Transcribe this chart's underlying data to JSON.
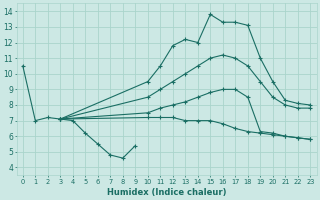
{
  "xlabel": "Humidex (Indice chaleur)",
  "bg_color": "#cce8e4",
  "grid_color": "#aad4cc",
  "line_color": "#1a6e64",
  "xlim": [
    -0.5,
    23.5
  ],
  "ylim": [
    3.5,
    14.5
  ],
  "xticks": [
    0,
    1,
    2,
    3,
    4,
    5,
    6,
    7,
    8,
    9,
    10,
    11,
    12,
    13,
    14,
    15,
    16,
    17,
    18,
    19,
    20,
    21,
    22,
    23
  ],
  "yticks": [
    4,
    5,
    6,
    7,
    8,
    9,
    10,
    11,
    12,
    13,
    14
  ],
  "lines": [
    [
      [
        0,
        10.5
      ],
      [
        1,
        7.0
      ],
      [
        2,
        7.2
      ],
      [
        3,
        7.1
      ],
      [
        4,
        7.0
      ],
      [
        5,
        6.2
      ],
      [
        6,
        5.5
      ],
      [
        7,
        4.8
      ],
      [
        8,
        4.6
      ],
      [
        9,
        5.4
      ]
    ],
    [
      [
        3,
        7.1
      ],
      [
        10,
        9.5
      ],
      [
        11,
        10.5
      ],
      [
        12,
        11.8
      ],
      [
        13,
        12.2
      ],
      [
        14,
        12.0
      ],
      [
        15,
        13.8
      ],
      [
        16,
        13.3
      ],
      [
        17,
        13.3
      ],
      [
        18,
        13.1
      ],
      [
        19,
        11.0
      ],
      [
        20,
        9.5
      ],
      [
        21,
        8.3
      ],
      [
        22,
        8.1
      ],
      [
        23,
        8.0
      ]
    ],
    [
      [
        3,
        7.1
      ],
      [
        10,
        8.5
      ],
      [
        11,
        9.0
      ],
      [
        12,
        9.5
      ],
      [
        13,
        10.0
      ],
      [
        14,
        10.5
      ],
      [
        15,
        11.0
      ],
      [
        16,
        11.2
      ],
      [
        17,
        11.0
      ],
      [
        18,
        10.5
      ],
      [
        19,
        9.5
      ],
      [
        20,
        8.5
      ],
      [
        21,
        8.0
      ],
      [
        22,
        7.8
      ],
      [
        23,
        7.8
      ]
    ],
    [
      [
        3,
        7.1
      ],
      [
        10,
        7.5
      ],
      [
        11,
        7.8
      ],
      [
        12,
        8.0
      ],
      [
        13,
        8.2
      ],
      [
        14,
        8.5
      ],
      [
        15,
        8.8
      ],
      [
        16,
        9.0
      ],
      [
        17,
        9.0
      ],
      [
        18,
        8.5
      ],
      [
        19,
        6.3
      ],
      [
        20,
        6.2
      ],
      [
        21,
        6.0
      ],
      [
        22,
        5.9
      ],
      [
        23,
        5.8
      ]
    ],
    [
      [
        3,
        7.1
      ],
      [
        10,
        7.2
      ],
      [
        11,
        7.2
      ],
      [
        12,
        7.2
      ],
      [
        13,
        7.0
      ],
      [
        14,
        7.0
      ],
      [
        15,
        7.0
      ],
      [
        16,
        6.8
      ],
      [
        17,
        6.5
      ],
      [
        18,
        6.3
      ],
      [
        19,
        6.2
      ],
      [
        20,
        6.1
      ],
      [
        21,
        6.0
      ],
      [
        22,
        5.9
      ],
      [
        23,
        5.8
      ]
    ]
  ]
}
